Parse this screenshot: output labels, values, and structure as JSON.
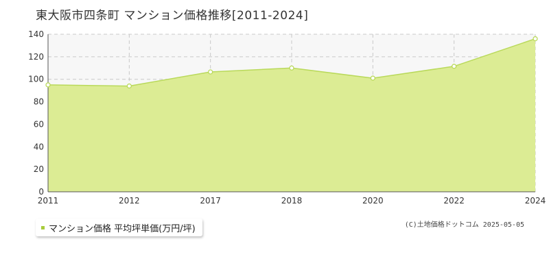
{
  "chart_data": {
    "type": "area",
    "title": "東大阪市四条町 マンション価格推移[2011-2024]",
    "x": [
      "2011",
      "2012",
      "2017",
      "2018",
      "2020",
      "2022",
      "2024"
    ],
    "series": [
      {
        "name": "マンション価格 平均坪単価(万円/坪)",
        "values": [
          95,
          94,
          106.5,
          110,
          101,
          111.5,
          136
        ]
      }
    ],
    "ylim": [
      0,
      140
    ],
    "yticks": [
      0,
      20,
      40,
      60,
      80,
      100,
      120,
      140
    ],
    "grid": true,
    "legend_position": "bottom-left"
  },
  "credit": "(C)土地価格ドットコム 2025-05-05",
  "colors": {
    "fill": "#dcec94",
    "line": "#b9d95a",
    "marker_fill": "#ffffff",
    "grid": "#c8c8c8",
    "plot_bg": "#f7f7f7",
    "legend_swatch": "#a8cc3c"
  }
}
